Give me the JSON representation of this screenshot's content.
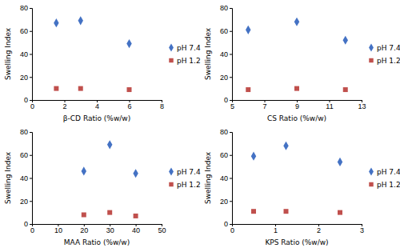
{
  "chart_data": [
    {
      "type": "scatter",
      "xlabel": "β-CD Ratio (%w/w)",
      "ylabel": "Swelling Index",
      "xlim": [
        0,
        8
      ],
      "ylim": [
        0,
        80
      ],
      "xticks": [
        0,
        2,
        4,
        6,
        8
      ],
      "yticks": [
        0,
        20,
        40,
        60,
        80
      ],
      "x": [
        1.5,
        3.0,
        6.0
      ],
      "legend": "right",
      "series": [
        {
          "name": "pH 7.4",
          "color": "#4472C4",
          "marker": "diamond",
          "values": [
            67,
            69,
            49
          ]
        },
        {
          "name": "pH 1.2",
          "color": "#C0504D",
          "marker": "square",
          "values": [
            10,
            10,
            9
          ]
        }
      ]
    },
    {
      "type": "scatter",
      "xlabel": "CS Ratio (%w/w)",
      "ylabel": "Swelling Index",
      "xlim": [
        5,
        13
      ],
      "ylim": [
        0,
        80
      ],
      "xticks": [
        5,
        7,
        9,
        11,
        13
      ],
      "yticks": [
        0,
        20,
        40,
        60,
        80
      ],
      "x": [
        6.0,
        9.0,
        12.0
      ],
      "legend": "right",
      "series": [
        {
          "name": "pH 7.4",
          "color": "#4472C4",
          "marker": "diamond",
          "values": [
            61,
            68,
            52
          ]
        },
        {
          "name": "pH 1.2",
          "color": "#C0504D",
          "marker": "square",
          "values": [
            9,
            10,
            9
          ]
        }
      ]
    },
    {
      "type": "scatter",
      "xlabel": "MAA Ratio (%w/w)",
      "ylabel": "Swelling Index",
      "xlim": [
        0,
        50
      ],
      "ylim": [
        0,
        80
      ],
      "xticks": [
        0,
        10,
        20,
        30,
        40,
        50
      ],
      "yticks": [
        0,
        20,
        40,
        60,
        80
      ],
      "x": [
        20,
        30,
        40
      ],
      "legend": "right",
      "series": [
        {
          "name": "pH 7.4",
          "color": "#4472C4",
          "marker": "diamond",
          "values": [
            46,
            69,
            44
          ]
        },
        {
          "name": "pH 1.2",
          "color": "#C0504D",
          "marker": "square",
          "values": [
            8,
            10,
            7
          ]
        }
      ]
    },
    {
      "type": "scatter",
      "xlabel": "KPS Ratio (%w/w)",
      "ylabel": "Swelling Index",
      "xlim": [
        0,
        3
      ],
      "ylim": [
        0,
        80
      ],
      "xticks": [
        0,
        1,
        2,
        3
      ],
      "yticks": [
        0,
        20,
        40,
        60,
        80
      ],
      "x": [
        0.5,
        1.25,
        2.5
      ],
      "legend": "right",
      "series": [
        {
          "name": "pH 7.4",
          "color": "#4472C4",
          "marker": "diamond",
          "values": [
            59,
            68,
            54
          ]
        },
        {
          "name": "pH 1.2",
          "color": "#C0504D",
          "marker": "square",
          "values": [
            11,
            11,
            10
          ]
        }
      ]
    }
  ]
}
